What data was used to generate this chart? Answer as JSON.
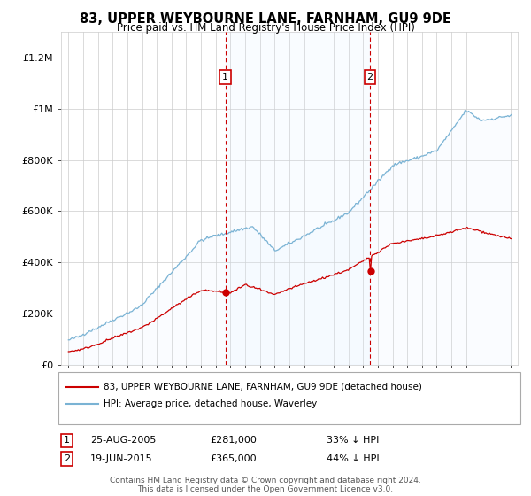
{
  "title": "83, UPPER WEYBOURNE LANE, FARNHAM, GU9 9DE",
  "subtitle": "Price paid vs. HM Land Registry's House Price Index (HPI)",
  "legend_line1": "83, UPPER WEYBOURNE LANE, FARNHAM, GU9 9DE (detached house)",
  "legend_line2": "HPI: Average price, detached house, Waverley",
  "annotation1": [
    "1",
    "25-AUG-2005",
    "£281,000",
    "33% ↓ HPI"
  ],
  "annotation2": [
    "2",
    "19-JUN-2015",
    "£365,000",
    "44% ↓ HPI"
  ],
  "footer": "Contains HM Land Registry data © Crown copyright and database right 2024.\nThis data is licensed under the Open Government Licence v3.0.",
  "sale1_year": 2005.646,
  "sale1_price": 281000,
  "sale2_year": 2015.463,
  "sale2_price": 365000,
  "ylim": [
    0,
    1300000
  ],
  "xlim_start": 1994.5,
  "xlim_end": 2025.5,
  "red_color": "#cc0000",
  "blue_color": "#7ab3d4",
  "blue_fill_color": "#ddeeff",
  "background_color": "#ffffff",
  "grid_color": "#cccccc",
  "dashed_line_color": "#cc0000"
}
